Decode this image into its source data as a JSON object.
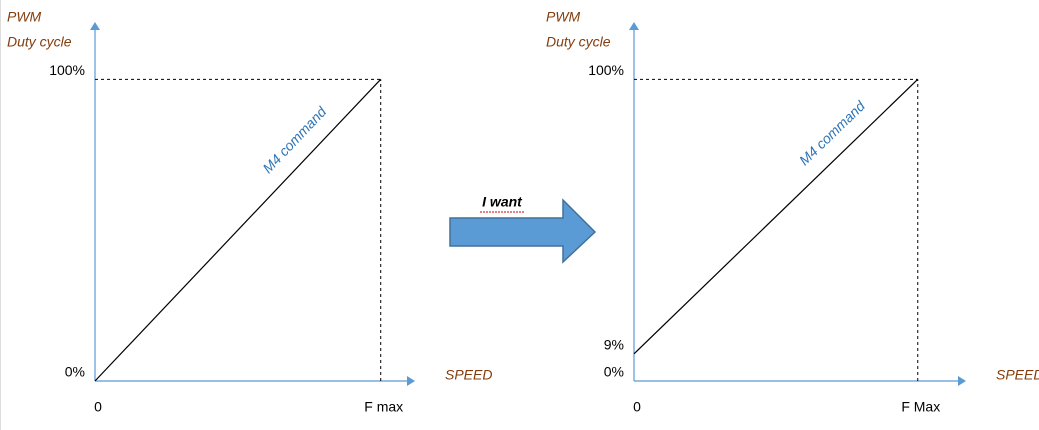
{
  "annotation": "I want",
  "chart_data": [
    {
      "type": "line",
      "ylabel": [
        "PWM",
        "Duty cycle"
      ],
      "xlabel": "SPEED",
      "x": [
        0,
        1
      ],
      "series": [
        {
          "name": "M4 command",
          "color": "#000000",
          "label_color": "#2e75b6",
          "values": [
            0,
            100
          ]
        }
      ],
      "xlim": [
        0,
        1.12
      ],
      "ylim": [
        0,
        119
      ],
      "xticks": [
        0,
        {
          "value": 1,
          "label": "F max"
        }
      ],
      "yticks": [
        {
          "value": 0,
          "label": "0%"
        },
        {
          "value": 100,
          "label": "100%"
        }
      ],
      "axis_color": "#5b9bd5",
      "label_color": "#843c0c"
    },
    {
      "type": "line",
      "ylabel": [
        "PWM",
        "Duty cycle"
      ],
      "xlabel": "SPEED",
      "x": [
        0,
        1
      ],
      "series": [
        {
          "name": "M4 command",
          "color": "#000000",
          "label_color": "#2e75b6",
          "values": [
            9,
            100
          ]
        }
      ],
      "xlim": [
        0,
        1.17
      ],
      "ylim": [
        0,
        119
      ],
      "xticks": [
        0,
        {
          "value": 1,
          "label": "F Max"
        }
      ],
      "yticks": [
        {
          "value": 0,
          "label": "0%"
        },
        {
          "value": 9,
          "label": "9%"
        },
        {
          "value": 100,
          "label": "100%"
        }
      ],
      "axis_color": "#5b9bd5",
      "label_color": "#843c0c"
    }
  ]
}
